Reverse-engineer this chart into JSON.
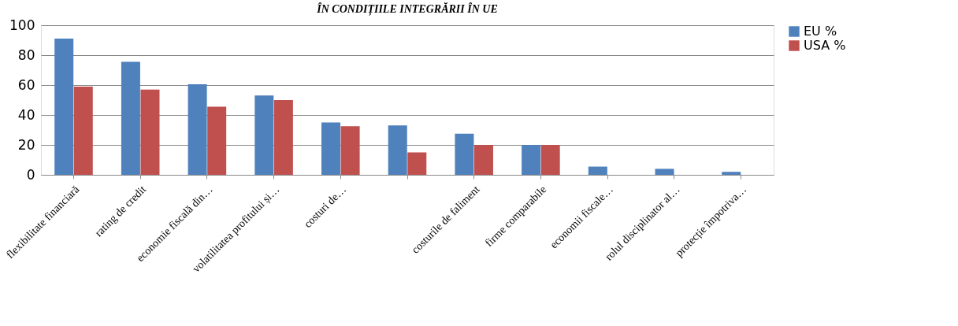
{
  "chart_data": {
    "type": "bar",
    "title": "ÎN CONDIȚIILE INTEGRĂRII ÎN UE",
    "categories": [
      "flexibilitate financiară",
      "rating de credit",
      "economie fiscală din…",
      "volatilitatea profitului și…",
      "costuri de…",
      null,
      "costurile de faliment",
      "firme comparabile",
      "economii fiscale…",
      "rolul disciplinator al…",
      "protecție împotriva…"
    ],
    "series": [
      {
        "name": "EU %",
        "color": "#4f81bd",
        "values": [
          91,
          75.5,
          60.5,
          53,
          35,
          33,
          27.5,
          20,
          5.5,
          4,
          2
        ]
      },
      {
        "name": "USA %",
        "color": "#c0504d",
        "values": [
          59,
          57,
          45.5,
          50,
          32.5,
          15,
          20,
          20,
          0,
          0,
          0
        ]
      }
    ],
    "ylim": [
      0,
      100
    ],
    "yticks": [
      0,
      20,
      40,
      60,
      80,
      100
    ],
    "grid": "y",
    "legend": "top right"
  }
}
